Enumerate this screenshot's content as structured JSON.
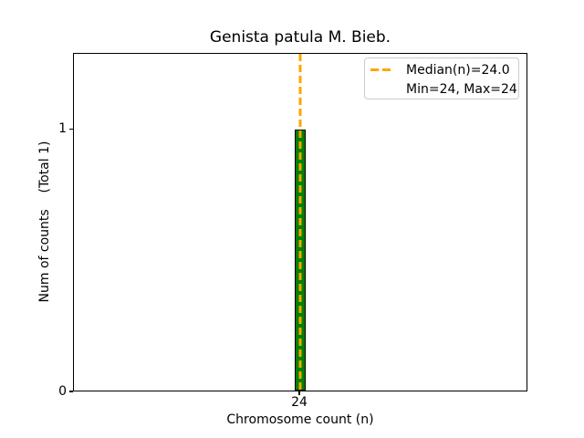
{
  "chart_data": {
    "type": "bar",
    "title": "Genista patula M. Bieb.",
    "xlabel": "Chromosome count (n)",
    "ylabel": "Num of counts    (Total 1)",
    "categories": [
      "24"
    ],
    "values": [
      1
    ],
    "total_counts": 1,
    "x_tick_labels": [
      "24"
    ],
    "y_tick_labels": [
      "0",
      "1"
    ],
    "ylim": [
      0,
      1.29
    ],
    "grid": false,
    "bar_color": "#008000",
    "bar_edge_color": "#000000",
    "median": {
      "value": 24.0,
      "line_color": "#ffa500",
      "line_style": "dashed"
    },
    "min": 24,
    "max": 24,
    "legend": {
      "position": "upper right",
      "entries": [
        {
          "label": "Median(n)=24.0",
          "marker": "orange-dashed-line"
        },
        {
          "label": "Min=24, Max=24",
          "marker": "none"
        }
      ]
    }
  }
}
